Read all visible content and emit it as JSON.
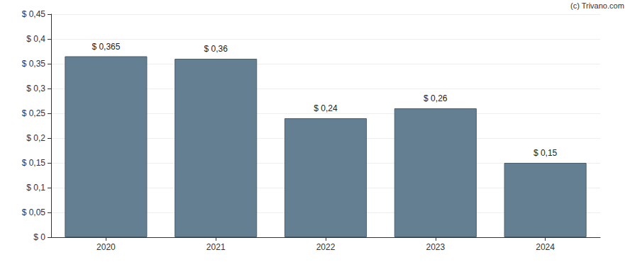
{
  "chart_data": {
    "type": "bar",
    "categories": [
      "2020",
      "2021",
      "2022",
      "2023",
      "2024"
    ],
    "values": [
      0.365,
      0.36,
      0.24,
      0.26,
      0.15
    ],
    "value_labels": [
      "$ 0,365",
      "$ 0,36",
      "$ 0,24",
      "$ 0,26",
      "$ 0,15"
    ],
    "data_labels": true,
    "color": "#647f91",
    "ylim": [
      0,
      0.45
    ],
    "yticks": [
      {
        "value": 0,
        "label": "$ 0"
      },
      {
        "value": 0.05,
        "label": "$ 0,05"
      },
      {
        "value": 0.1,
        "label": "$ 0,1"
      },
      {
        "value": 0.15,
        "label": "$ 0,15"
      },
      {
        "value": 0.2,
        "label": "$ 0,2"
      },
      {
        "value": 0.25,
        "label": "$ 0,25"
      },
      {
        "value": 0.3,
        "label": "$ 0,3"
      },
      {
        "value": 0.35,
        "label": "$ 0,35"
      },
      {
        "value": 0.4,
        "label": "$ 0,4"
      },
      {
        "value": 0.45,
        "label": "$ 0,45"
      }
    ],
    "grid": true,
    "annotations": [
      "(c) Trivano.com"
    ]
  }
}
